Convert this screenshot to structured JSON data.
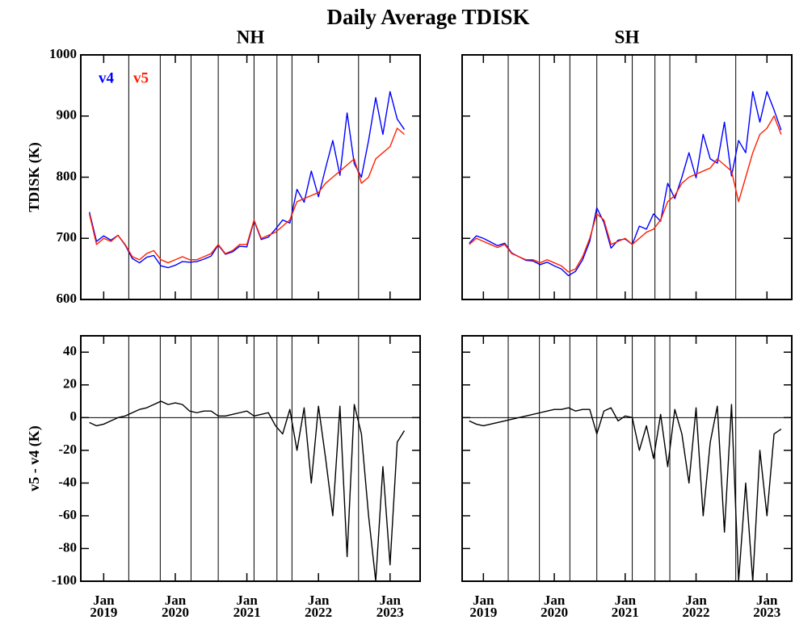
{
  "title": "Daily Average TDISK",
  "chart_data": [
    {
      "type": "line",
      "title": "NH",
      "ylabel": "TDISK (K)",
      "legend": "top-left",
      "show_xtick_labels": false,
      "show_ytick_labels": true,
      "x": [
        2018.8,
        2018.9,
        2019.0,
        2019.1,
        2019.2,
        2019.3,
        2019.4,
        2019.5,
        2019.6,
        2019.7,
        2019.8,
        2019.9,
        2020.0,
        2020.1,
        2020.2,
        2020.3,
        2020.4,
        2020.5,
        2020.6,
        2020.7,
        2020.8,
        2020.9,
        2021.0,
        2021.1,
        2021.2,
        2021.3,
        2021.4,
        2021.5,
        2021.6,
        2021.7,
        2021.8,
        2021.9,
        2022.0,
        2022.1,
        2022.2,
        2022.3,
        2022.4,
        2022.5,
        2022.6,
        2022.7,
        2022.8,
        2022.9,
        2023.0,
        2023.1,
        2023.2
      ],
      "series": [
        {
          "name": "v4",
          "color": "#0000ff",
          "values": [
            743,
            695,
            704,
            697,
            705,
            689,
            667,
            660,
            669,
            672,
            655,
            652,
            656,
            662,
            661,
            662,
            666,
            671,
            689,
            674,
            678,
            687,
            686,
            729,
            698,
            702,
            715,
            730,
            725,
            780,
            759,
            810,
            768,
            815,
            860,
            803,
            905,
            822,
            800,
            860,
            930,
            870,
            940,
            895,
            878
          ]
        },
        {
          "name": "v5",
          "color": "#ff2000",
          "values": [
            740,
            690,
            700,
            695,
            705,
            690,
            670,
            665,
            675,
            680,
            665,
            660,
            665,
            670,
            665,
            665,
            670,
            675,
            690,
            675,
            680,
            690,
            690,
            730,
            700,
            705,
            710,
            720,
            730,
            760,
            765,
            770,
            775,
            790,
            800,
            810,
            820,
            830,
            790,
            800,
            830,
            840,
            850,
            880,
            870
          ]
        }
      ],
      "xlim": [
        2018.68,
        2023.42
      ],
      "ylim": [
        600,
        1000
      ],
      "xticks": [
        2019,
        2020,
        2021,
        2022,
        2023
      ],
      "yticks": [
        600,
        700,
        800,
        900,
        1000
      ],
      "vlines": [
        2019.35,
        2019.79,
        2020.22,
        2020.6,
        2021.1,
        2021.42,
        2021.63,
        2022.56
      ]
    },
    {
      "type": "line",
      "title": "SH",
      "show_xtick_labels": false,
      "show_ytick_labels": false,
      "x": [
        2018.8,
        2018.9,
        2019.0,
        2019.1,
        2019.2,
        2019.3,
        2019.4,
        2019.5,
        2019.6,
        2019.7,
        2019.8,
        2019.9,
        2020.0,
        2020.1,
        2020.2,
        2020.3,
        2020.4,
        2020.5,
        2020.6,
        2020.7,
        2020.8,
        2020.9,
        2021.0,
        2021.1,
        2021.2,
        2021.3,
        2021.4,
        2021.5,
        2021.6,
        2021.7,
        2021.8,
        2021.9,
        2022.0,
        2022.1,
        2022.2,
        2022.3,
        2022.4,
        2022.5,
        2022.6,
        2022.7,
        2022.8,
        2022.9,
        2023.0,
        2023.1,
        2023.2
      ],
      "series": [
        {
          "name": "v4",
          "color": "#0000ff",
          "values": [
            692,
            704,
            700,
            694,
            688,
            692,
            676,
            670,
            664,
            663,
            657,
            661,
            655,
            650,
            639,
            646,
            665,
            695,
            750,
            726,
            684,
            697,
            699,
            690,
            720,
            715,
            740,
            728,
            790,
            765,
            800,
            840,
            799,
            870,
            830,
            823,
            890,
            802,
            860,
            840,
            940,
            890,
            940,
            910,
            877
          ]
        },
        {
          "name": "v5",
          "color": "#ff2000",
          "values": [
            690,
            700,
            695,
            690,
            685,
            690,
            675,
            670,
            665,
            665,
            660,
            665,
            660,
            655,
            645,
            650,
            670,
            700,
            740,
            730,
            690,
            695,
            700,
            690,
            700,
            710,
            715,
            730,
            760,
            770,
            790,
            800,
            805,
            810,
            815,
            830,
            820,
            810,
            760,
            800,
            840,
            870,
            880,
            900,
            870
          ]
        }
      ],
      "xlim": [
        2018.7,
        2023.35
      ],
      "ylim": [
        600,
        1000
      ],
      "xticks": [
        2019,
        2020,
        2021,
        2022,
        2023
      ],
      "yticks": [
        600,
        700,
        800,
        900,
        1000
      ],
      "vlines": [
        2019.35,
        2019.79,
        2020.22,
        2020.6,
        2021.1,
        2021.42,
        2021.63,
        2022.56
      ]
    },
    {
      "type": "line",
      "ylabel": "v5 - v4 (K)",
      "show_xtick_labels": true,
      "show_ytick_labels": true,
      "x": [
        2018.8,
        2018.9,
        2019.0,
        2019.1,
        2019.2,
        2019.3,
        2019.4,
        2019.5,
        2019.6,
        2019.7,
        2019.8,
        2019.9,
        2020.0,
        2020.1,
        2020.2,
        2020.3,
        2020.4,
        2020.5,
        2020.6,
        2020.7,
        2020.8,
        2020.9,
        2021.0,
        2021.1,
        2021.2,
        2021.3,
        2021.4,
        2021.5,
        2021.6,
        2021.7,
        2021.8,
        2021.9,
        2022.0,
        2022.1,
        2022.2,
        2022.3,
        2022.4,
        2022.5,
        2022.6,
        2022.7,
        2022.8,
        2022.9,
        2023.0,
        2023.1,
        2023.2
      ],
      "series": [
        {
          "color": "#000000",
          "values": [
            -3,
            -5,
            -4,
            -2,
            0,
            1,
            3,
            5,
            6,
            8,
            10,
            8,
            9,
            8,
            4,
            3,
            4,
            4,
            1,
            1,
            2,
            3,
            4,
            1,
            2,
            3,
            -5,
            -10,
            5,
            -20,
            6,
            -40,
            7,
            -25,
            -60,
            7,
            -85,
            8,
            -10,
            -60,
            -100,
            -30,
            -90,
            -15,
            -8
          ]
        }
      ],
      "xlim": [
        2018.68,
        2023.42
      ],
      "ylim": [
        -100,
        50
      ],
      "hline": 0,
      "xticks": [
        {
          "value": 2019,
          "label": "Jan 2019"
        },
        {
          "value": 2020,
          "label": "Jan 2020"
        },
        {
          "value": 2021,
          "label": "Jan 2021"
        },
        {
          "value": 2022,
          "label": "Jan 2022"
        },
        {
          "value": 2023,
          "label": "Jan 2023"
        }
      ],
      "yticks": [
        -100,
        -80,
        -60,
        -40,
        -20,
        0,
        20,
        40
      ],
      "vlines": [
        2019.35,
        2019.79,
        2020.22,
        2020.6,
        2021.1,
        2021.42,
        2021.63,
        2022.56
      ]
    },
    {
      "type": "line",
      "show_xtick_labels": true,
      "show_ytick_labels": false,
      "x": [
        2018.8,
        2018.9,
        2019.0,
        2019.1,
        2019.2,
        2019.3,
        2019.4,
        2019.5,
        2019.6,
        2019.7,
        2019.8,
        2019.9,
        2020.0,
        2020.1,
        2020.2,
        2020.3,
        2020.4,
        2020.5,
        2020.6,
        2020.7,
        2020.8,
        2020.9,
        2021.0,
        2021.1,
        2021.2,
        2021.3,
        2021.4,
        2021.5,
        2021.6,
        2021.7,
        2021.8,
        2021.9,
        2022.0,
        2022.1,
        2022.2,
        2022.3,
        2022.4,
        2022.5,
        2022.6,
        2022.7,
        2022.8,
        2022.9,
        2023.0,
        2023.1,
        2023.2
      ],
      "series": [
        {
          "color": "#000000",
          "values": [
            -2,
            -4,
            -5,
            -4,
            -3,
            -2,
            -1,
            0,
            1,
            2,
            3,
            4,
            5,
            5,
            6,
            4,
            5,
            5,
            -10,
            4,
            6,
            -2,
            1,
            0,
            -20,
            -5,
            -25,
            2,
            -30,
            5,
            -10,
            -40,
            6,
            -60,
            -15,
            7,
            -70,
            8,
            -100,
            -40,
            -100,
            -20,
            -60,
            -10,
            -7
          ]
        }
      ],
      "xlim": [
        2018.7,
        2023.35
      ],
      "ylim": [
        -100,
        50
      ],
      "hline": 0,
      "xticks": [
        {
          "value": 2019,
          "label": "Jan 2019"
        },
        {
          "value": 2020,
          "label": "Jan 2020"
        },
        {
          "value": 2021,
          "label": "Jan 2021"
        },
        {
          "value": 2022,
          "label": "Jan 2022"
        },
        {
          "value": 2023,
          "label": "Jan 2023"
        }
      ],
      "yticks": [
        -100,
        -80,
        -60,
        -40,
        -20,
        0,
        20,
        40
      ],
      "vlines": [
        2019.35,
        2019.79,
        2020.22,
        2020.6,
        2021.1,
        2021.42,
        2021.63,
        2022.56
      ]
    }
  ]
}
